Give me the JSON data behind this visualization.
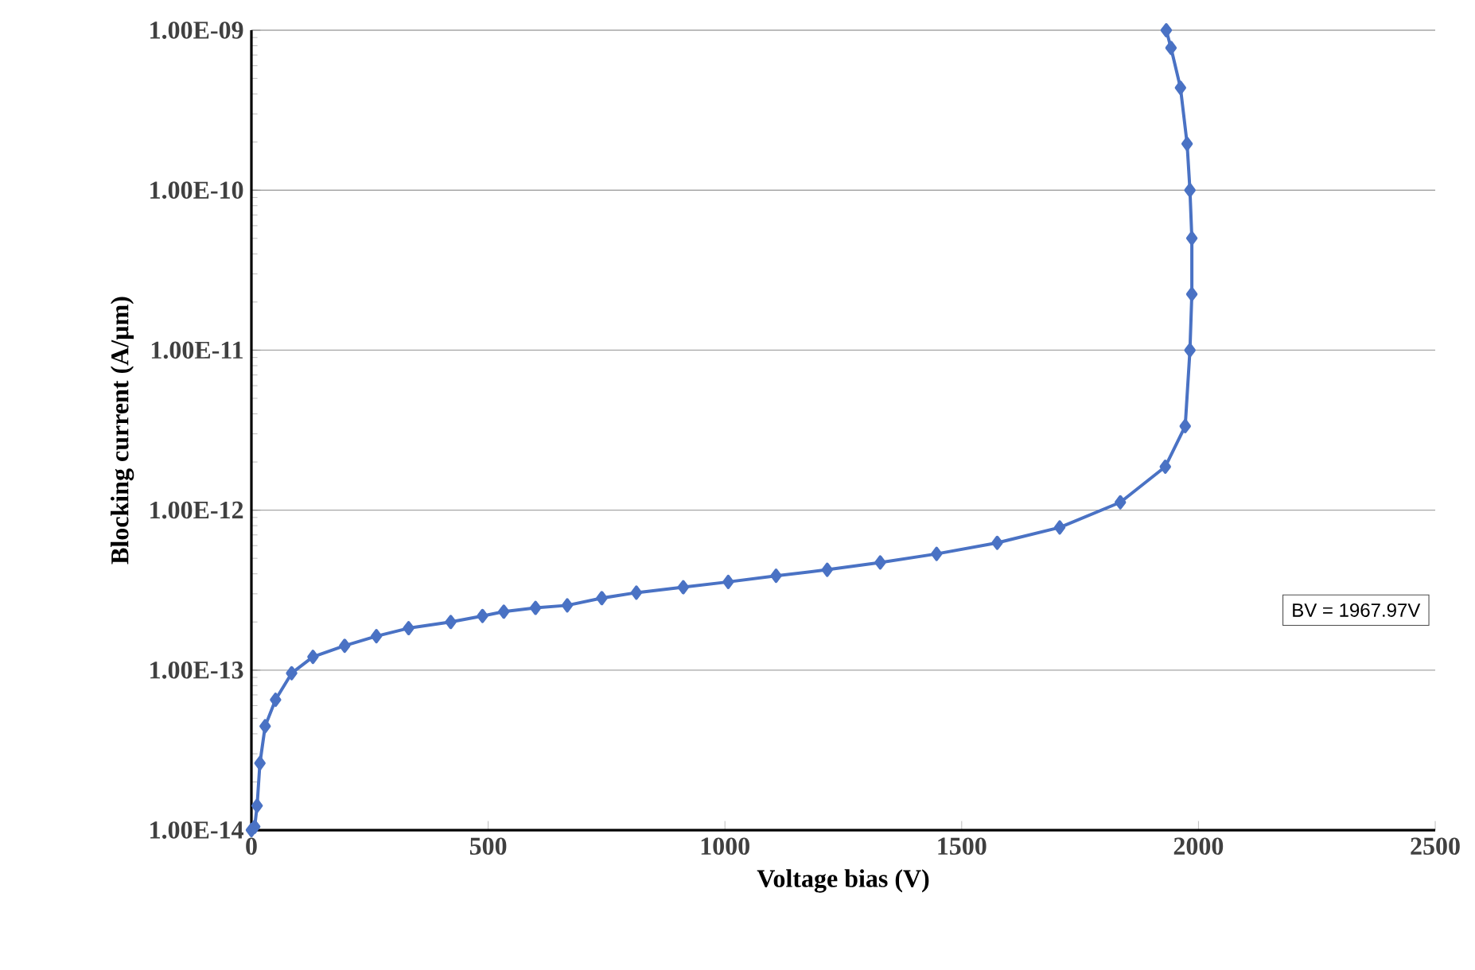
{
  "chart_data": {
    "type": "line",
    "xlabel": "Voltage bias (V)",
    "ylabel": "Blocking current (A/µm)",
    "x": [
      0,
      7,
      12,
      18,
      29,
      51,
      85,
      130,
      197,
      264,
      332,
      421,
      488,
      533,
      600,
      667,
      740,
      813,
      912,
      1007,
      1108,
      1216,
      1328,
      1447,
      1575,
      1707,
      1835,
      1930,
      1972,
      1982,
      1986,
      1986,
      1982,
      1976,
      1962,
      1942,
      1932
    ],
    "series": [
      {
        "color": "#4a72c4",
        "values": [
          1e-14,
          1.05e-14,
          1.42e-14,
          2.62e-14,
          4.46e-14,
          6.53e-14,
          9.57e-14,
          1.21e-13,
          1.42e-13,
          1.63e-13,
          1.83e-13,
          2e-13,
          2.18e-13,
          2.32e-13,
          2.45e-13,
          2.54e-13,
          2.82e-13,
          3.05e-13,
          3.3e-13,
          3.56e-13,
          3.89e-13,
          4.24e-13,
          4.71e-13,
          5.33e-13,
          6.25e-13,
          7.8e-13,
          1.12e-12,
          1.87e-12,
          3.35e-12,
          1e-11,
          2.24e-11,
          5.01e-11,
          1e-10,
          1.95e-10,
          4.37e-10,
          7.76e-10,
          1e-09
        ]
      }
    ],
    "xlim": [
      0,
      2500
    ],
    "xticks": [
      0,
      500,
      1000,
      1500,
      2000,
      2500
    ],
    "ylim": [
      1e-14,
      1e-09
    ],
    "yticks": [
      {
        "value": 1e-14,
        "label": "1.00E-14"
      },
      {
        "value": 1e-13,
        "label": "1.00E-13"
      },
      {
        "value": 1e-12,
        "label": "1.00E-12"
      },
      {
        "value": 1e-11,
        "label": "1.00E-11"
      },
      {
        "value": 1e-10,
        "label": "1.00E-10"
      },
      {
        "value": 1e-09,
        "label": "1.00E-09"
      }
    ],
    "log": "y",
    "grid": "y",
    "marker": "diamond",
    "line_style": "solid",
    "annotations": [
      "BV = 1967.97V"
    ]
  }
}
